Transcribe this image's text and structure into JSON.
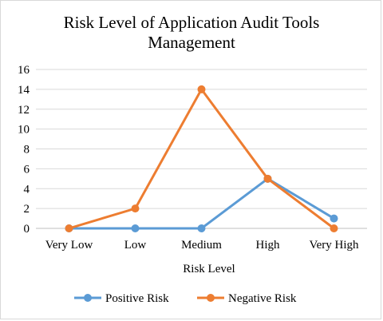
{
  "chart_data": {
    "type": "line",
    "title_lines": [
      "Risk Level of Application Audit Tools",
      "Management"
    ],
    "xlabel": "Risk Level",
    "ylabel": "",
    "categories": [
      "Very Low",
      "Low",
      "Medium",
      "High",
      "Very High"
    ],
    "ylim": [
      0,
      16
    ],
    "yticks": [
      0,
      2,
      4,
      6,
      8,
      10,
      12,
      14,
      16
    ],
    "grid": true,
    "legend_position": "bottom",
    "series": [
      {
        "name": "Positive Risk",
        "color": "#5b9bd5",
        "values": [
          0,
          0,
          0,
          5,
          1
        ]
      },
      {
        "name": "Negative Risk",
        "color": "#ed7d31",
        "values": [
          0,
          2,
          14,
          5,
          0
        ]
      }
    ]
  }
}
